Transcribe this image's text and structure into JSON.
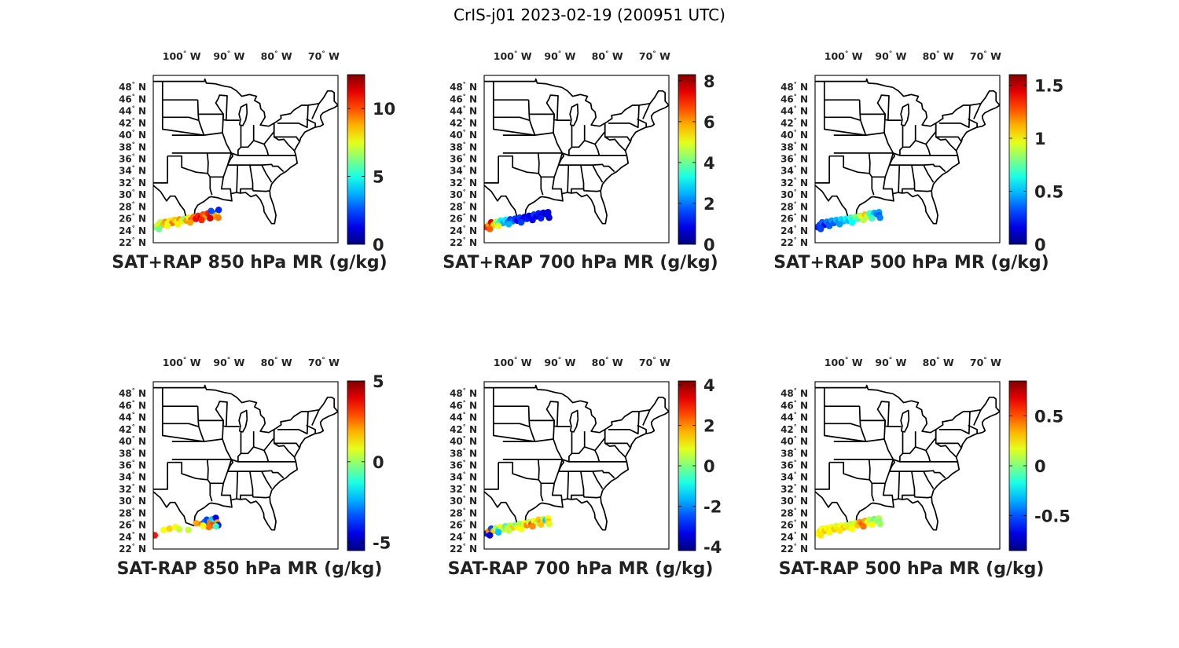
{
  "figure": {
    "title": "CrIS-j01 2023-02-19 (200951 UTC)",
    "degree_symbol": "°",
    "lon_ticks": [
      {
        "value": -100,
        "label": "100 W"
      },
      {
        "value": -90,
        "label": "90 W"
      },
      {
        "value": -80,
        "label": "80 W"
      },
      {
        "value": -70,
        "label": "70 W"
      }
    ],
    "lat_ticks": [
      {
        "value": 48,
        "label": "48 N"
      },
      {
        "value": 46,
        "label": "46 N"
      },
      {
        "value": 44,
        "label": "44 N"
      },
      {
        "value": 42,
        "label": "42 N"
      },
      {
        "value": 40,
        "label": "40 N"
      },
      {
        "value": 38,
        "label": "38 N"
      },
      {
        "value": 36,
        "label": "36 N"
      },
      {
        "value": 34,
        "label": "34 N"
      },
      {
        "value": 32,
        "label": "32 N"
      },
      {
        "value": 30,
        "label": "30 N"
      },
      {
        "value": 28,
        "label": "28 N"
      },
      {
        "value": 26,
        "label": "26 N"
      },
      {
        "value": 24,
        "label": "24 N"
      },
      {
        "value": 22,
        "label": "22 N"
      }
    ],
    "map_extent": {
      "lon": [
        -106,
        -67
      ],
      "lat": [
        22,
        50
      ]
    },
    "colormap": "jet"
  },
  "chart_data": [
    {
      "type": "scatter-map",
      "title": "SAT+RAP 850 hPa MR (g/kg)",
      "clim": [
        0,
        12.5
      ],
      "cbar_ticks": [
        {
          "value": 0,
          "label": "0"
        },
        {
          "value": 5,
          "label": "5"
        },
        {
          "value": 10,
          "label": "10"
        }
      ],
      "points": [
        [
          -105.5,
          24.6,
          6.5
        ],
        [
          -105.0,
          25.0,
          8.0
        ],
        [
          -104.5,
          25.4,
          7.0
        ],
        [
          -104.0,
          25.0,
          8.5
        ],
        [
          -103.5,
          25.5,
          9.0
        ],
        [
          -103.0,
          25.2,
          7.5
        ],
        [
          -102.5,
          25.7,
          8.0
        ],
        [
          -102.0,
          25.3,
          9.5
        ],
        [
          -101.5,
          25.8,
          8.5
        ],
        [
          -101.0,
          25.5,
          7.0
        ],
        [
          -100.5,
          25.9,
          9.0
        ],
        [
          -100.0,
          25.6,
          8.0
        ],
        [
          -99.5,
          26.0,
          6.5
        ],
        [
          -99.0,
          25.7,
          9.0
        ],
        [
          -98.5,
          26.2,
          8.0
        ],
        [
          -98.0,
          25.8,
          10.0
        ],
        [
          -97.5,
          26.3,
          9.5
        ],
        [
          -97.0,
          26.0,
          11.0
        ],
        [
          -96.5,
          26.5,
          10.5
        ],
        [
          -96.0,
          26.2,
          11.5
        ],
        [
          -95.5,
          26.7,
          10.0
        ],
        [
          -95.0,
          26.4,
          9.0
        ],
        [
          -94.5,
          26.9,
          10.5
        ],
        [
          -94.0,
          26.5,
          11.0
        ],
        [
          -93.5,
          27.0,
          6.0
        ],
        [
          -93.0,
          26.8,
          4.5
        ],
        [
          -92.5,
          27.1,
          3.0
        ],
        [
          -92.5,
          26.6,
          8.0
        ],
        [
          -93.8,
          27.3,
          2.5
        ],
        [
          -92.2,
          27.5,
          2.0
        ],
        [
          -93.0,
          26.4,
          9.0
        ],
        [
          -104.8,
          24.3,
          6.0
        ],
        [
          -103.0,
          24.8,
          7.5
        ],
        [
          -100.8,
          25.1,
          8.0
        ],
        [
          -98.2,
          25.4,
          9.0
        ],
        [
          -95.8,
          25.8,
          10.5
        ],
        [
          -94.0,
          26.1,
          11.5
        ],
        [
          -92.3,
          26.2,
          9.5
        ]
      ]
    },
    {
      "type": "scatter-map",
      "title": "SAT+RAP 700 hPa MR (g/kg)",
      "clim": [
        0,
        8.3
      ],
      "cbar_ticks": [
        {
          "value": 0,
          "label": "0"
        },
        {
          "value": 2,
          "label": "2"
        },
        {
          "value": 4,
          "label": "4"
        },
        {
          "value": 6,
          "label": "6"
        },
        {
          "value": 8,
          "label": "8"
        }
      ],
      "points": [
        [
          -105.5,
          24.6,
          7.0
        ],
        [
          -105.0,
          25.0,
          6.0
        ],
        [
          -104.5,
          25.4,
          7.5
        ],
        [
          -104.0,
          25.0,
          5.5
        ],
        [
          -103.5,
          25.5,
          4.5
        ],
        [
          -103.0,
          25.2,
          3.5
        ],
        [
          -102.5,
          25.7,
          3.0
        ],
        [
          -102.0,
          25.3,
          2.5
        ],
        [
          -101.5,
          25.8,
          3.0
        ],
        [
          -101.0,
          25.5,
          2.0
        ],
        [
          -100.5,
          25.9,
          1.5
        ],
        [
          -100.0,
          25.6,
          2.0
        ],
        [
          -99.5,
          26.0,
          1.5
        ],
        [
          -99.0,
          25.7,
          1.0
        ],
        [
          -98.5,
          26.2,
          1.5
        ],
        [
          -98.0,
          25.8,
          1.0
        ],
        [
          -97.5,
          26.3,
          0.8
        ],
        [
          -97.0,
          26.0,
          1.2
        ],
        [
          -96.5,
          26.5,
          0.8
        ],
        [
          -96.0,
          26.2,
          1.0
        ],
        [
          -95.5,
          26.7,
          1.5
        ],
        [
          -95.0,
          26.4,
          0.8
        ],
        [
          -94.5,
          26.9,
          1.2
        ],
        [
          -94.0,
          26.5,
          0.6
        ],
        [
          -93.5,
          27.0,
          0.8
        ],
        [
          -93.0,
          26.8,
          0.5
        ],
        [
          -92.5,
          27.1,
          0.8
        ],
        [
          -92.5,
          26.6,
          1.0
        ],
        [
          -104.8,
          24.3,
          6.5
        ],
        [
          -103.0,
          24.8,
          5.0
        ],
        [
          -100.8,
          25.1,
          2.5
        ],
        [
          -98.2,
          25.4,
          1.5
        ],
        [
          -95.8,
          25.8,
          1.0
        ],
        [
          -94.0,
          26.1,
          1.2
        ],
        [
          -92.3,
          26.2,
          0.8
        ]
      ]
    },
    {
      "type": "scatter-map",
      "title": "SAT+RAP 500 hPa MR (g/kg)",
      "clim": [
        0,
        1.6
      ],
      "cbar_ticks": [
        {
          "value": 0,
          "label": "0"
        },
        {
          "value": 0.5,
          "label": "0.5"
        },
        {
          "value": 1,
          "label": "1"
        },
        {
          "value": 1.5,
          "label": "1.5"
        }
      ],
      "points": [
        [
          -105.5,
          24.6,
          0.25
        ],
        [
          -105.0,
          25.0,
          0.3
        ],
        [
          -104.5,
          25.4,
          0.35
        ],
        [
          -104.0,
          25.0,
          0.2
        ],
        [
          -103.5,
          25.5,
          0.4
        ],
        [
          -103.0,
          25.2,
          0.3
        ],
        [
          -102.5,
          25.7,
          0.45
        ],
        [
          -102.0,
          25.3,
          0.35
        ],
        [
          -101.5,
          25.8,
          0.5
        ],
        [
          -101.0,
          25.5,
          0.4
        ],
        [
          -100.5,
          25.9,
          0.55
        ],
        [
          -100.0,
          25.6,
          0.5
        ],
        [
          -99.5,
          26.0,
          0.6
        ],
        [
          -99.0,
          25.7,
          0.5
        ],
        [
          -98.5,
          26.2,
          0.7
        ],
        [
          -98.0,
          25.8,
          0.6
        ],
        [
          -97.5,
          26.3,
          0.8
        ],
        [
          -97.0,
          26.0,
          0.7
        ],
        [
          -96.5,
          26.5,
          0.9
        ],
        [
          -96.0,
          26.2,
          1.0
        ],
        [
          -95.5,
          26.7,
          1.1
        ],
        [
          -95.0,
          26.4,
          0.9
        ],
        [
          -94.5,
          26.9,
          0.7
        ],
        [
          -94.0,
          26.5,
          0.6
        ],
        [
          -93.5,
          27.0,
          0.5
        ],
        [
          -93.0,
          26.8,
          0.4
        ],
        [
          -92.5,
          27.1,
          0.45
        ],
        [
          -92.5,
          26.6,
          0.35
        ],
        [
          -104.8,
          24.3,
          0.3
        ],
        [
          -103.0,
          24.8,
          0.35
        ],
        [
          -100.8,
          25.1,
          0.45
        ],
        [
          -98.2,
          25.4,
          0.6
        ],
        [
          -95.8,
          25.8,
          0.9
        ],
        [
          -94.0,
          26.1,
          0.7
        ],
        [
          -92.3,
          26.2,
          0.4
        ]
      ]
    },
    {
      "type": "scatter-map",
      "title": "SAT-RAP 850 hPa MR (g/kg)",
      "clim": [
        -5.5,
        5
      ],
      "cbar_ticks": [
        {
          "value": -5,
          "label": "-5"
        },
        {
          "value": 0,
          "label": "0"
        },
        {
          "value": 5,
          "label": "5"
        }
      ],
      "points": [
        [
          -105.7,
          24.3,
          3.5
        ],
        [
          -103.8,
          25.2,
          1.0
        ],
        [
          -102.6,
          25.4,
          1.5
        ],
        [
          -101.3,
          25.7,
          1.0
        ],
        [
          -100.5,
          25.3,
          0.5
        ],
        [
          -98.6,
          25.2,
          0.5
        ],
        [
          -96.9,
          26.3,
          2.0
        ],
        [
          -95.8,
          26.2,
          2.5
        ],
        [
          -95.2,
          26.5,
          -3.0
        ],
        [
          -94.7,
          26.9,
          -3.5
        ],
        [
          -94.0,
          26.6,
          2.5
        ],
        [
          -93.5,
          27.0,
          -2.0
        ],
        [
          -93.0,
          26.6,
          -1.5
        ],
        [
          -92.8,
          27.2,
          -4.5
        ],
        [
          -92.5,
          26.4,
          2.0
        ],
        [
          -92.3,
          26.0,
          -4.0
        ],
        [
          -93.5,
          26.0,
          3.0
        ],
        [
          -94.3,
          25.7,
          2.5
        ],
        [
          -95.5,
          25.9,
          1.0
        ],
        [
          -92.8,
          25.8,
          -1.0
        ]
      ]
    },
    {
      "type": "scatter-map",
      "title": "SAT-RAP 700 hPa MR (g/kg)",
      "clim": [
        -4.2,
        4.2
      ],
      "cbar_ticks": [
        {
          "value": -4,
          "label": "-4"
        },
        {
          "value": -2,
          "label": "-2"
        },
        {
          "value": 0,
          "label": "0"
        },
        {
          "value": 2,
          "label": "2"
        },
        {
          "value": 4,
          "label": "4"
        }
      ],
      "points": [
        [
          -105.5,
          24.6,
          -3.0
        ],
        [
          -105.0,
          25.0,
          2.0
        ],
        [
          -104.5,
          25.4,
          -2.5
        ],
        [
          -104.0,
          25.0,
          1.5
        ],
        [
          -103.5,
          25.5,
          0.5
        ],
        [
          -103.0,
          25.2,
          -1.0
        ],
        [
          -102.5,
          25.7,
          1.0
        ],
        [
          -102.0,
          25.3,
          0.5
        ],
        [
          -101.5,
          25.8,
          -0.5
        ],
        [
          -101.0,
          25.5,
          1.0
        ],
        [
          -100.5,
          25.9,
          0.5
        ],
        [
          -100.0,
          25.6,
          1.5
        ],
        [
          -99.5,
          26.0,
          0.0
        ],
        [
          -99.0,
          25.7,
          1.0
        ],
        [
          -98.5,
          26.2,
          0.5
        ],
        [
          -98.0,
          25.8,
          0.0
        ],
        [
          -97.5,
          26.3,
          1.0
        ],
        [
          -97.0,
          26.0,
          2.0
        ],
        [
          -96.5,
          26.5,
          0.5
        ],
        [
          -96.0,
          26.2,
          2.5
        ],
        [
          -95.5,
          26.7,
          1.0
        ],
        [
          -95.0,
          26.4,
          0.5
        ],
        [
          -94.5,
          26.9,
          1.5
        ],
        [
          -94.0,
          26.5,
          2.0
        ],
        [
          -93.5,
          27.0,
          0.5
        ],
        [
          -93.0,
          26.8,
          -1.5
        ],
        [
          -92.5,
          27.1,
          1.0
        ],
        [
          -92.5,
          26.6,
          1.5
        ],
        [
          -104.8,
          24.3,
          -3.5
        ],
        [
          -103.0,
          24.8,
          -1.5
        ],
        [
          -100.8,
          25.1,
          0.5
        ],
        [
          -98.2,
          25.4,
          1.0
        ],
        [
          -95.8,
          25.8,
          2.0
        ],
        [
          -94.0,
          26.1,
          1.5
        ],
        [
          -92.3,
          26.2,
          0.8
        ]
      ]
    },
    {
      "type": "scatter-map",
      "title": "SAT-RAP 500 hPa MR (g/kg)",
      "clim": [
        -0.85,
        0.85
      ],
      "cbar_ticks": [
        {
          "value": -0.5,
          "label": "-0.5"
        },
        {
          "value": 0,
          "label": "0"
        },
        {
          "value": 0.5,
          "label": "0.5"
        }
      ],
      "points": [
        [
          -105.5,
          24.6,
          0.2
        ],
        [
          -105.0,
          25.0,
          0.25
        ],
        [
          -104.5,
          25.4,
          0.2
        ],
        [
          -104.0,
          25.0,
          0.3
        ],
        [
          -103.5,
          25.5,
          0.2
        ],
        [
          -103.0,
          25.2,
          0.25
        ],
        [
          -102.5,
          25.7,
          0.2
        ],
        [
          -102.0,
          25.3,
          0.3
        ],
        [
          -101.5,
          25.8,
          0.15
        ],
        [
          -101.0,
          25.5,
          0.25
        ],
        [
          -100.5,
          25.9,
          0.2
        ],
        [
          -100.0,
          25.6,
          0.3
        ],
        [
          -99.5,
          26.0,
          0.15
        ],
        [
          -99.0,
          25.7,
          0.25
        ],
        [
          -98.5,
          26.2,
          0.1
        ],
        [
          -98.0,
          25.8,
          0.2
        ],
        [
          -97.5,
          26.3,
          0.15
        ],
        [
          -97.0,
          26.0,
          0.3
        ],
        [
          -96.5,
          26.5,
          0.4
        ],
        [
          -96.0,
          26.2,
          0.5
        ],
        [
          -95.5,
          26.7,
          0.35
        ],
        [
          -95.0,
          26.4,
          0.2
        ],
        [
          -94.5,
          26.9,
          0.1
        ],
        [
          -94.0,
          26.5,
          0.0
        ],
        [
          -93.5,
          27.0,
          -0.05
        ],
        [
          -93.0,
          26.8,
          0.05
        ],
        [
          -92.5,
          27.1,
          0.1
        ],
        [
          -92.5,
          26.6,
          0.0
        ],
        [
          -104.8,
          24.3,
          0.25
        ],
        [
          -103.0,
          24.8,
          0.2
        ],
        [
          -100.8,
          25.1,
          0.25
        ],
        [
          -98.2,
          25.4,
          0.2
        ],
        [
          -95.8,
          25.8,
          0.45
        ],
        [
          -94.0,
          26.1,
          0.2
        ],
        [
          -92.3,
          26.2,
          0.05
        ]
      ]
    }
  ]
}
